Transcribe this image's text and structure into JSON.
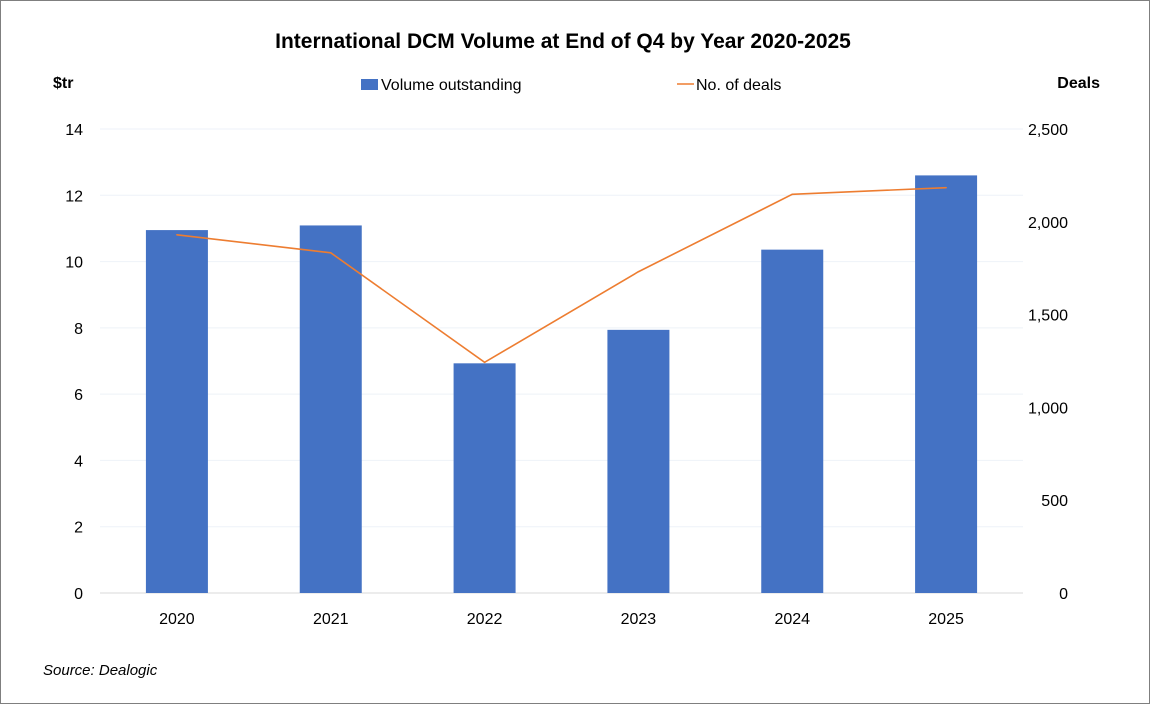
{
  "chart_data": {
    "type": "bar+line",
    "title": "International DCM Volume at End of Q4 by Year 2020-2025",
    "categories": [
      "2020",
      "2021",
      "2022",
      "2023",
      "2024",
      "2025"
    ],
    "left_axis": {
      "label": "$tr",
      "ylim": [
        0,
        14
      ],
      "ticks": [
        "0",
        "2",
        "4",
        "6",
        "8",
        "10",
        "12",
        "14"
      ],
      "tick_values": [
        0,
        2,
        4,
        6,
        8,
        10,
        12,
        14
      ]
    },
    "right_axis": {
      "label": "Deals",
      "ylim": [
        0,
        2500
      ],
      "ticks": [
        "0",
        "500",
        "1,000",
        "1,500",
        "2,000",
        "2,500"
      ],
      "tick_values": [
        0,
        500,
        1000,
        1500,
        2000,
        2500
      ]
    },
    "series": [
      {
        "name": "Volume outstanding",
        "type": "bar",
        "axis": "left",
        "color": "#4472c4",
        "values": [
          10.95,
          11.09,
          6.93,
          7.94,
          10.36,
          12.6
        ]
      },
      {
        "name": "No. of deals",
        "type": "line",
        "axis": "right",
        "color": "#ed7d31",
        "values": [
          1930,
          1833,
          1243,
          1731,
          2148,
          2184
        ]
      }
    ],
    "grid": true,
    "legend": "top",
    "source": "Source: Dealogic"
  }
}
